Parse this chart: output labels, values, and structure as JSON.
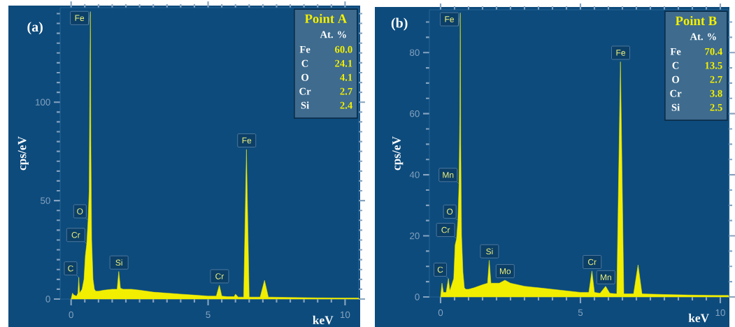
{
  "chart_data": [
    {
      "type": "area",
      "xlabel": "keV",
      "ylabel": "cps/eV",
      "xlim": [
        -0.4,
        10.5
      ],
      "ylim": [
        0,
        148
      ],
      "xticks": [
        0,
        {
          "value": 0.5,
          "label": null
        },
        {
          "value": 1,
          "label": null
        },
        {
          "value": 1.5,
          "label": null
        },
        {
          "value": 2,
          "label": null
        },
        {
          "value": 2.5,
          "label": null
        },
        {
          "value": 3,
          "label": null
        },
        {
          "value": 3.5,
          "label": null
        },
        {
          "value": 4,
          "label": null
        },
        {
          "value": 4.5,
          "label": null
        },
        5,
        {
          "value": 5.5,
          "label": null
        },
        {
          "value": 6,
          "label": null
        },
        {
          "value": 6.5,
          "label": null
        },
        {
          "value": 7,
          "label": null
        },
        {
          "value": 7.5,
          "label": null
        },
        {
          "value": 8,
          "label": null
        },
        {
          "value": 8.5,
          "label": null
        },
        {
          "value": 9,
          "label": null
        },
        {
          "value": 9.5,
          "label": null
        },
        10
      ],
      "yticks": [
        0,
        {
          "value": 5,
          "label": null
        },
        {
          "value": 10,
          "label": null
        },
        {
          "value": 15,
          "label": null
        },
        {
          "value": 20,
          "label": null
        },
        {
          "value": 25,
          "label": null
        },
        {
          "value": 30,
          "label": null
        },
        {
          "value": 35,
          "label": null
        },
        {
          "value": 40,
          "label": null
        },
        {
          "value": 45,
          "label": null
        },
        50,
        {
          "value": 55,
          "label": null
        },
        {
          "value": 60,
          "label": null
        },
        {
          "value": 65,
          "label": null
        },
        {
          "value": 70,
          "label": null
        },
        {
          "value": 75,
          "label": null
        },
        {
          "value": 80,
          "label": null
        },
        {
          "value": 85,
          "label": null
        },
        {
          "value": 90,
          "label": null
        },
        {
          "value": 95,
          "label": null
        },
        100,
        {
          "value": 105,
          "label": null
        },
        {
          "value": 110,
          "label": null
        },
        {
          "value": 115,
          "label": null
        },
        {
          "value": 120,
          "label": null
        },
        {
          "value": 125,
          "label": null
        },
        {
          "value": 130,
          "label": null
        },
        {
          "value": 135,
          "label": null
        },
        {
          "value": 140,
          "label": null
        },
        {
          "value": 145,
          "label": null
        }
      ],
      "series": [
        {
          "color": "#f2ee00",
          "x": [
            0,
            0.05,
            0.1,
            0.2,
            0.25,
            0.28,
            0.31,
            0.4,
            0.47,
            0.52,
            0.57,
            0.62,
            0.66,
            0.69,
            0.705,
            0.72,
            0.75,
            0.8,
            0.85,
            0.9,
            1.0,
            1.2,
            1.5,
            1.68,
            1.74,
            1.8,
            1.9,
            2.2,
            2.5,
            3,
            3.5,
            4,
            4.5,
            5,
            5.3,
            5.41,
            5.5,
            5.7,
            5.95,
            6.0,
            6.1,
            6.3,
            6.4,
            6.5,
            6.9,
            7.06,
            7.2,
            8,
            9,
            10,
            10.5
          ],
          "values": [
            0,
            3,
            2,
            1.5,
            3,
            11,
            3,
            5,
            10,
            22,
            28,
            40,
            55,
            120,
            146,
            80,
            30,
            10,
            5,
            4,
            4,
            4.5,
            5,
            5,
            14,
            5.5,
            5,
            5,
            4.5,
            3.5,
            3,
            2.5,
            2,
            1.5,
            1.5,
            7,
            1.5,
            1.2,
            1.2,
            2.5,
            1,
            1,
            76,
            1,
            1,
            9.5,
            1,
            0.8,
            0.6,
            0.5,
            0.5
          ]
        }
      ],
      "annotations": [
        "(a)",
        "Point A",
        "At. %",
        "Fe",
        "60.0",
        "C",
        "24.1",
        "O",
        "4.1",
        "Cr",
        "2.7",
        "Si",
        "2.4",
        {
          "text": "Fe",
          "x": 0.705,
          "y": 146
        },
        {
          "text": "O",
          "x": 0.62,
          "y": 40
        },
        {
          "text": "Cr",
          "x": 0.57,
          "y": 28
        },
        {
          "text": "C",
          "x": 0.28,
          "y": 11
        },
        {
          "text": "Si",
          "x": 1.74,
          "y": 14
        },
        {
          "text": "Cr",
          "x": 5.41,
          "y": 7
        },
        {
          "text": "Fe",
          "x": 6.4,
          "y": 76
        }
      ]
    },
    {
      "type": "area",
      "xlabel": "keV",
      "ylabel": "cps/eV",
      "xlim": [
        -0.4,
        10.3
      ],
      "ylim": [
        0,
        94
      ],
      "xticks": [
        0,
        {
          "value": 0.5,
          "label": null
        },
        {
          "value": 1,
          "label": null
        },
        {
          "value": 1.5,
          "label": null
        },
        {
          "value": 2,
          "label": null
        },
        {
          "value": 2.5,
          "label": null
        },
        {
          "value": 3,
          "label": null
        },
        {
          "value": 3.5,
          "label": null
        },
        {
          "value": 4,
          "label": null
        },
        {
          "value": 4.5,
          "label": null
        },
        5,
        {
          "value": 5.5,
          "label": null
        },
        {
          "value": 6,
          "label": null
        },
        {
          "value": 6.5,
          "label": null
        },
        {
          "value": 7,
          "label": null
        },
        {
          "value": 7.5,
          "label": null
        },
        {
          "value": 8,
          "label": null
        },
        {
          "value": 8.5,
          "label": null
        },
        {
          "value": 9,
          "label": null
        },
        {
          "value": 9.5,
          "label": null
        },
        10
      ],
      "yticks": [
        0,
        {
          "value": 5,
          "label": null
        },
        {
          "value": 10,
          "label": null
        },
        {
          "value": 15,
          "label": null
        },
        20,
        {
          "value": 25,
          "label": null
        },
        {
          "value": 30,
          "label": null
        },
        {
          "value": 35,
          "label": null
        },
        40,
        {
          "value": 45,
          "label": null
        },
        {
          "value": 50,
          "label": null
        },
        {
          "value": 55,
          "label": null
        },
        60,
        {
          "value": 65,
          "label": null
        },
        {
          "value": 70,
          "label": null
        },
        {
          "value": 75,
          "label": null
        },
        80,
        {
          "value": 85,
          "label": null
        },
        {
          "value": 90,
          "label": null
        }
      ],
      "series": [
        {
          "color": "#f2ee00",
          "x": [
            0,
            0.05,
            0.1,
            0.2,
            0.28,
            0.33,
            0.4,
            0.47,
            0.52,
            0.57,
            0.62,
            0.66,
            0.69,
            0.705,
            0.72,
            0.75,
            0.8,
            0.85,
            0.9,
            1.0,
            1.2,
            1.5,
            1.68,
            1.74,
            1.8,
            1.9,
            2.1,
            2.3,
            2.5,
            3,
            3.5,
            4,
            4.5,
            5,
            5.3,
            5.41,
            5.5,
            5.7,
            5.9,
            6.05,
            6.3,
            6.43,
            6.55,
            6.9,
            7.06,
            7.2,
            8,
            9,
            10,
            10.3
          ],
          "values": [
            0,
            4.5,
            1.5,
            1.5,
            6,
            2,
            4,
            6,
            17,
            19,
            25,
            37,
            60,
            93,
            50,
            20,
            8,
            3,
            2.5,
            2.5,
            3,
            4,
            4.5,
            12,
            4.5,
            4.5,
            4.5,
            5.5,
            4.5,
            3.5,
            3,
            2.5,
            2,
            1.5,
            1.5,
            8.5,
            1.5,
            1.2,
            3.5,
            1.2,
            1,
            77,
            1,
            1,
            10.5,
            1,
            0.8,
            0.6,
            0.5,
            0.5
          ]
        }
      ],
      "annotations": [
        "(b)",
        "Point B",
        "At. %",
        "Fe",
        "70.4",
        "C",
        "13.5",
        "O",
        "2.7",
        "Cr",
        "3.8",
        "Si",
        "2.5",
        {
          "text": "Fe",
          "x": 0.705,
          "y": 93
        },
        {
          "text": "Mn",
          "x": 0.66,
          "y": 37
        },
        {
          "text": "O",
          "x": 0.62,
          "y": 25
        },
        {
          "text": "Cr",
          "x": 0.57,
          "y": 19
        },
        {
          "text": "C",
          "x": 0.28,
          "y": 6
        },
        {
          "text": "Si",
          "x": 1.74,
          "y": 12
        },
        {
          "text": "Mo",
          "x": 2.3,
          "y": 5.5
        },
        {
          "text": "Cr",
          "x": 5.41,
          "y": 8.5
        },
        {
          "text": "Mn",
          "x": 5.9,
          "y": 3.5
        },
        {
          "text": "Fe",
          "x": 6.43,
          "y": 77
        }
      ]
    }
  ]
}
